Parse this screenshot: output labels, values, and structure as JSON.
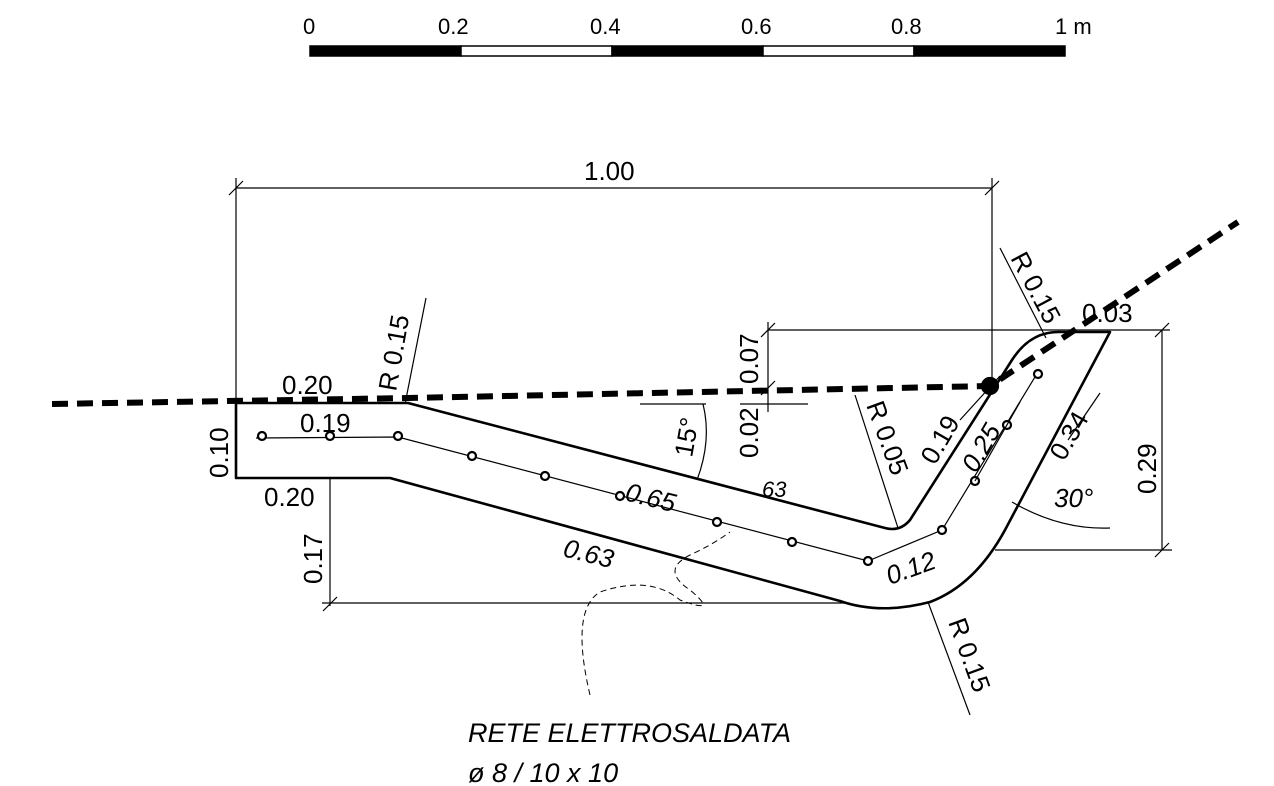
{
  "scale_bar": {
    "ticks": [
      "0",
      "0.2",
      "0.4",
      "0.6",
      "0.8",
      "1 m"
    ],
    "fills": [
      "#000000",
      "#ffffff",
      "#000000",
      "#ffffff",
      "#000000"
    ]
  },
  "dimensions": {
    "overall_width": "1.00",
    "radius_top_left": "R 0.15",
    "radius_top_right": "R 0.15",
    "radius_inner_bend": "R 0.05",
    "radius_bottom": "R 0.15",
    "top_right_tip": "0.03",
    "top_rise": "0.07",
    "small_rise": "0.02",
    "left_top_flat": "0.20",
    "left_mid_flat": "0.19",
    "left_bottom_flat": "0.20",
    "left_height": "0.10",
    "left_drop": "0.17",
    "slope_angle": "15°",
    "sloped_top": "0.65",
    "sloped_ghost": "63",
    "sloped_bottom": "0.63",
    "bend_section": "0.12",
    "riser_inner": "0.19",
    "riser_mid": "0.25",
    "riser_outer": "0.34",
    "riser_angle": "30°",
    "right_height": "0.29"
  },
  "note": {
    "line1": "RETE ELETTROSALDATA",
    "line2": "ø 8 / 10 x 10"
  },
  "colors": {
    "ink": "#000000",
    "paper": "#ffffff"
  }
}
